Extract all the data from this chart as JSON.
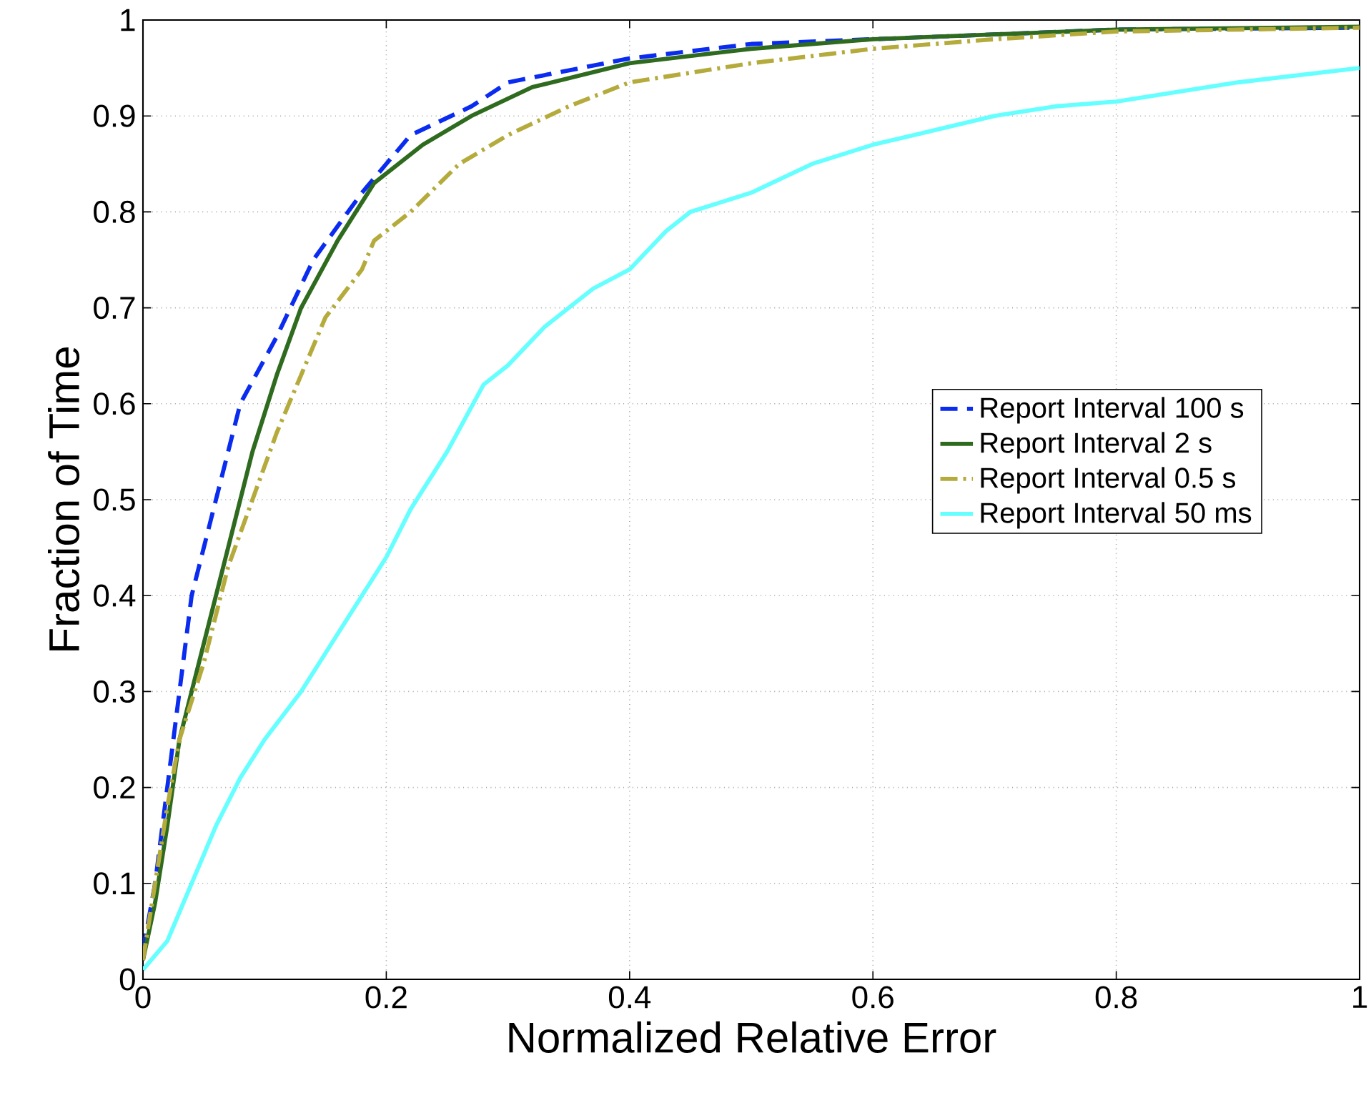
{
  "chart_data": {
    "type": "line",
    "xlabel": "Normalized Relative Error",
    "ylabel": "Fraction of Time",
    "xlim": [
      0,
      1
    ],
    "ylim": [
      0,
      1
    ],
    "xticks": [
      0,
      0.2,
      0.4,
      0.6,
      0.8,
      1
    ],
    "yticks": [
      0,
      0.1,
      0.2,
      0.3,
      0.4,
      0.5,
      0.6,
      0.7,
      0.8,
      0.9,
      1
    ],
    "grid": true,
    "legend": "center right",
    "marker": "none",
    "series": [
      {
        "name": "Report Interval 100 s",
        "color": "#0a2bf0",
        "line_style": "dashed",
        "x": [
          0,
          0.01,
          0.02,
          0.03,
          0.04,
          0.06,
          0.08,
          0.11,
          0.14,
          0.18,
          0.22,
          0.27,
          0.3,
          0.4,
          0.5,
          0.6,
          0.8,
          1
        ],
        "values": [
          0.03,
          0.1,
          0.2,
          0.3,
          0.4,
          0.5,
          0.6,
          0.67,
          0.75,
          0.82,
          0.88,
          0.91,
          0.935,
          0.96,
          0.975,
          0.98,
          0.99,
          0.992
        ]
      },
      {
        "name": "Report Interval 2 s",
        "color": "#2f6b1f",
        "line_style": "solid",
        "x": [
          0,
          0.01,
          0.02,
          0.03,
          0.05,
          0.07,
          0.09,
          0.11,
          0.13,
          0.16,
          0.19,
          0.23,
          0.27,
          0.32,
          0.4,
          0.5,
          0.6,
          0.8,
          1
        ],
        "values": [
          0.02,
          0.08,
          0.16,
          0.25,
          0.35,
          0.45,
          0.55,
          0.63,
          0.7,
          0.77,
          0.83,
          0.87,
          0.9,
          0.93,
          0.955,
          0.97,
          0.98,
          0.99,
          0.993
        ]
      },
      {
        "name": "Report Interval 0.5 s",
        "color": "#b5ab3c",
        "line_style": "dashdot",
        "x": [
          0,
          0.02,
          0.03,
          0.05,
          0.07,
          0.09,
          0.11,
          0.13,
          0.15,
          0.18,
          0.19,
          0.22,
          0.26,
          0.3,
          0.35,
          0.4,
          0.5,
          0.6,
          0.7,
          0.8,
          1
        ],
        "values": [
          0.02,
          0.18,
          0.25,
          0.33,
          0.43,
          0.5,
          0.57,
          0.63,
          0.69,
          0.74,
          0.77,
          0.8,
          0.85,
          0.88,
          0.91,
          0.935,
          0.955,
          0.97,
          0.98,
          0.988,
          0.992
        ]
      },
      {
        "name": "Report Interval 50 ms",
        "color": "#66ffff",
        "line_style": "solid",
        "x": [
          0,
          0.02,
          0.04,
          0.06,
          0.08,
          0.1,
          0.13,
          0.15,
          0.17,
          0.2,
          0.22,
          0.25,
          0.28,
          0.3,
          0.33,
          0.37,
          0.4,
          0.43,
          0.45,
          0.5,
          0.55,
          0.6,
          0.65,
          0.7,
          0.75,
          0.8,
          0.85,
          0.9,
          1
        ],
        "values": [
          0.01,
          0.04,
          0.1,
          0.16,
          0.21,
          0.25,
          0.3,
          0.34,
          0.38,
          0.44,
          0.49,
          0.55,
          0.62,
          0.64,
          0.68,
          0.72,
          0.74,
          0.78,
          0.8,
          0.82,
          0.85,
          0.87,
          0.885,
          0.9,
          0.91,
          0.915,
          0.925,
          0.935,
          0.95
        ]
      }
    ]
  }
}
